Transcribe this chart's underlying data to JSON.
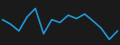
{
  "y": [
    7.0,
    6.2,
    5.0,
    7.5,
    9.0,
    4.5,
    7.0,
    6.5,
    7.8,
    7.2,
    8.0,
    6.8,
    5.5,
    3.5,
    5.0
  ],
  "line_color": "#2196d4",
  "linewidth": 1.2,
  "background_color": "#1a1a1a"
}
